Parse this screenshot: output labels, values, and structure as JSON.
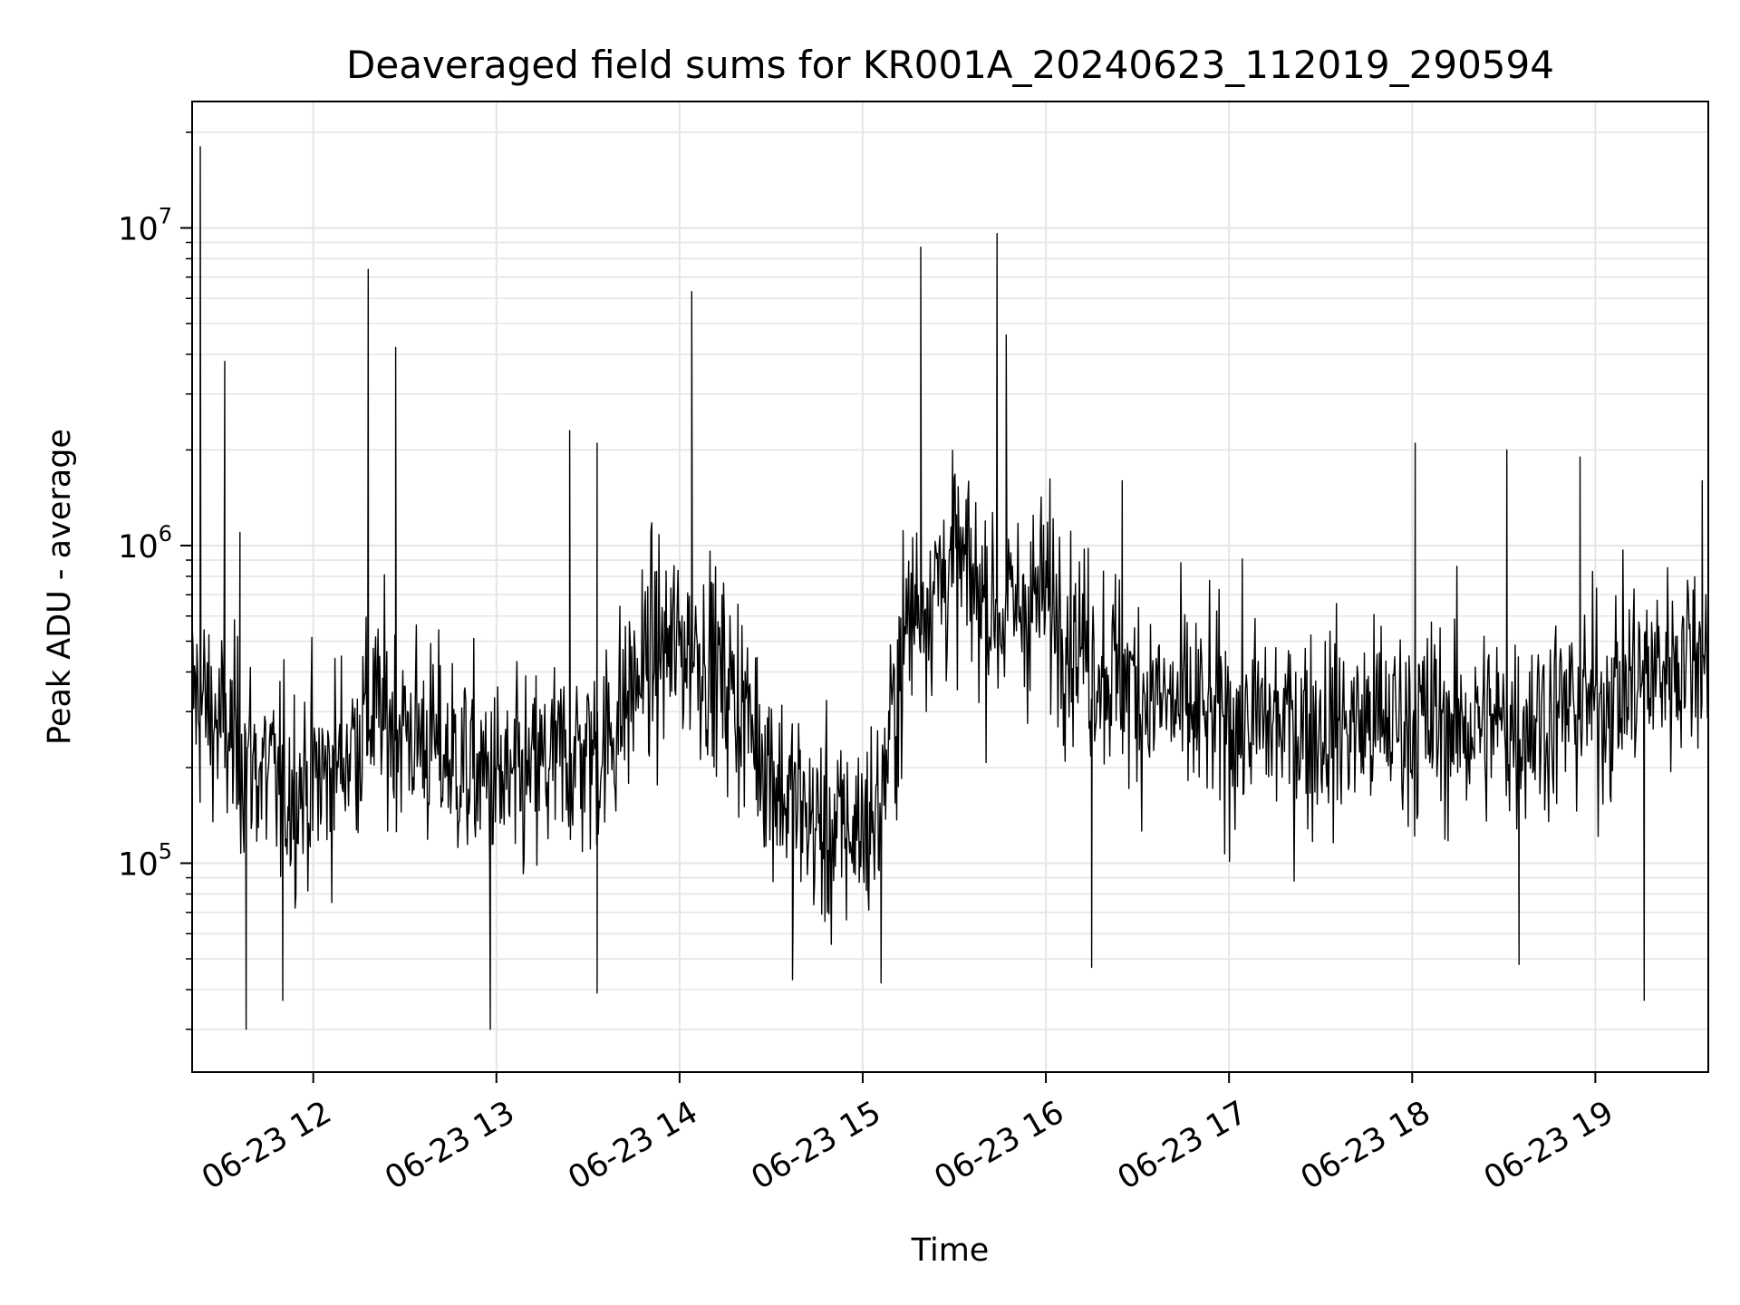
{
  "chart_data": {
    "type": "line",
    "title": "Deaveraged field sums for KR001A_20240623_112019_290594",
    "xlabel": "Time",
    "ylabel": "Peak ADU - average",
    "y_scale": "log",
    "ylim": [
      22000,
      25000000
    ],
    "xlim": [
      "2024-06-23 11:20:19",
      "2024-06-23 19:37:00"
    ],
    "x_ticks": [
      {
        "x": "2024-06-23 12:00",
        "label": "06-23 12"
      },
      {
        "x": "2024-06-23 13:00",
        "label": "06-23 13"
      },
      {
        "x": "2024-06-23 14:00",
        "label": "06-23 14"
      },
      {
        "x": "2024-06-23 15:00",
        "label": "06-23 15"
      },
      {
        "x": "2024-06-23 16:00",
        "label": "06-23 16"
      },
      {
        "x": "2024-06-23 17:00",
        "label": "06-23 17"
      },
      {
        "x": "2024-06-23 18:00",
        "label": "06-23 18"
      },
      {
        "x": "2024-06-23 19:00",
        "label": "06-23 19"
      }
    ],
    "y_ticks": [
      {
        "value": 100000,
        "base": "10",
        "exp": "5"
      },
      {
        "value": 1000000,
        "base": "10",
        "exp": "6"
      },
      {
        "value": 10000000,
        "base": "10",
        "exp": "7"
      }
    ],
    "grid": true,
    "line_color": "#000000",
    "grid_color": "#e5e5e5",
    "series_baseline": [
      [
        "2024-06-23 11:20",
        350000
      ],
      [
        "2024-06-23 11:35",
        230000
      ],
      [
        "2024-06-23 11:50",
        170000
      ],
      [
        "2024-06-23 12:05",
        190000
      ],
      [
        "2024-06-23 12:20",
        300000
      ],
      [
        "2024-06-23 12:35",
        250000
      ],
      [
        "2024-06-23 12:50",
        200000
      ],
      [
        "2024-06-23 13:05",
        170000
      ],
      [
        "2024-06-23 13:20",
        210000
      ],
      [
        "2024-06-23 13:35",
        230000
      ],
      [
        "2024-06-23 13:50",
        450000
      ],
      [
        "2024-06-23 14:05",
        500000
      ],
      [
        "2024-06-23 14:20",
        320000
      ],
      [
        "2024-06-23 14:35",
        160000
      ],
      [
        "2024-06-23 14:50",
        120000
      ],
      [
        "2024-06-23 15:05",
        140000
      ],
      [
        "2024-06-23 15:15",
        600000
      ],
      [
        "2024-06-23 15:30",
        900000
      ],
      [
        "2024-06-23 15:45",
        600000
      ],
      [
        "2024-06-23 16:00",
        700000
      ],
      [
        "2024-06-23 16:15",
        450000
      ],
      [
        "2024-06-23 16:30",
        350000
      ],
      [
        "2024-06-23 16:45",
        300000
      ],
      [
        "2024-06-23 17:00",
        280000
      ],
      [
        "2024-06-23 17:30",
        270000
      ],
      [
        "2024-06-23 18:00",
        280000
      ],
      [
        "2024-06-23 18:30",
        270000
      ],
      [
        "2024-06-23 19:00",
        320000
      ],
      [
        "2024-06-23 19:37",
        500000
      ]
    ],
    "notable_peaks": [
      [
        "2024-06-23 11:23",
        18000000
      ],
      [
        "2024-06-23 11:31",
        3800000
      ],
      [
        "2024-06-23 11:36",
        1100000
      ],
      [
        "2024-06-23 12:18",
        7400000
      ],
      [
        "2024-06-23 12:27",
        4200000
      ],
      [
        "2024-06-23 13:24",
        2300000
      ],
      [
        "2024-06-23 13:33",
        2100000
      ],
      [
        "2024-06-23 14:04",
        6300000
      ],
      [
        "2024-06-23 15:19",
        8700000
      ],
      [
        "2024-06-23 15:44",
        9600000
      ],
      [
        "2024-06-23 15:47",
        4600000
      ],
      [
        "2024-06-23 16:25",
        1600000
      ],
      [
        "2024-06-23 18:01",
        2100000
      ],
      [
        "2024-06-23 18:31",
        2000000
      ],
      [
        "2024-06-23 18:55",
        1900000
      ],
      [
        "2024-06-23 19:35",
        1600000
      ]
    ],
    "notable_troughs": [
      [
        "2024-06-23 11:38",
        30000
      ],
      [
        "2024-06-23 11:50",
        37000
      ],
      [
        "2024-06-23 12:58",
        30000
      ],
      [
        "2024-06-23 13:33",
        39000
      ],
      [
        "2024-06-23 14:37",
        43000
      ],
      [
        "2024-06-23 15:06",
        42000
      ],
      [
        "2024-06-23 16:15",
        47000
      ],
      [
        "2024-06-23 18:35",
        48000
      ],
      [
        "2024-06-23 19:16",
        37000
      ]
    ]
  }
}
